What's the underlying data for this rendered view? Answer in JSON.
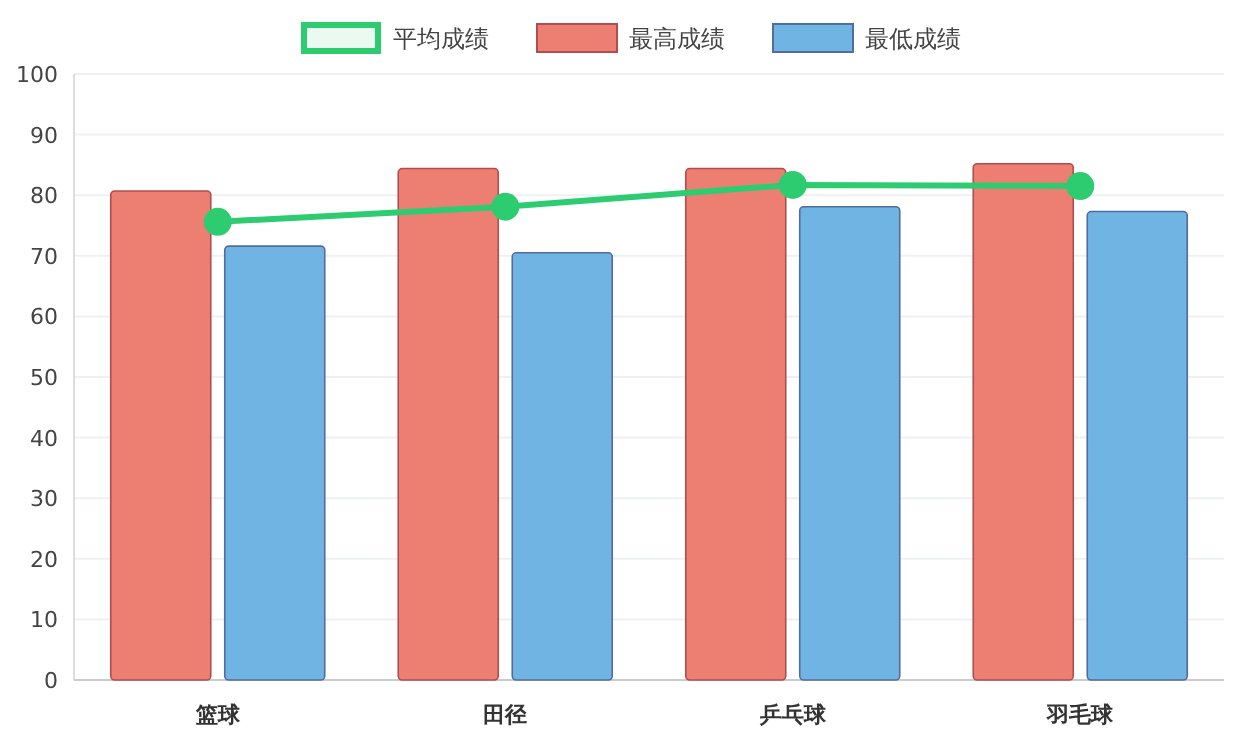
{
  "chart_data": {
    "type": "bar",
    "categories": [
      "篮球",
      "田径",
      "乒乓球",
      "羽毛球"
    ],
    "series": [
      {
        "name": "平均成绩",
        "type": "line",
        "color": "#2ecc71",
        "marker": "circle",
        "values": [
          75.6,
          78.1,
          81.7,
          81.5
        ]
      },
      {
        "name": "最高成绩",
        "color": "#ec7f72",
        "values": [
          80.7,
          84.4,
          84.4,
          85.2
        ]
      },
      {
        "name": "最低成绩",
        "color": "#6fb4e2",
        "values": [
          71.6,
          70.5,
          78.1,
          77.3
        ]
      }
    ],
    "ylim": [
      0,
      100
    ],
    "yticks": [
      0,
      10,
      20,
      30,
      40,
      50,
      60,
      70,
      80,
      90,
      100
    ],
    "grid": "y",
    "legend": "top"
  }
}
